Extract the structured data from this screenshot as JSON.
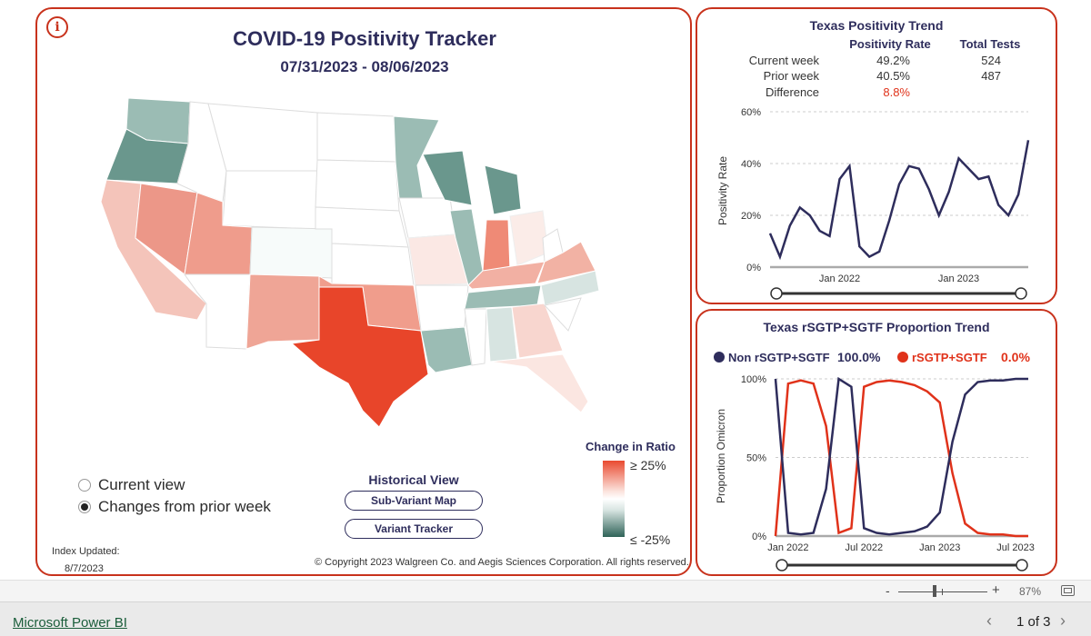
{
  "main": {
    "title": "COVID-19 Positivity Tracker",
    "date_range": "07/31/2023 - 08/06/2023",
    "info_icon": "info-icon",
    "legend": {
      "title": "Change in Ratio",
      "high": "≥ 25%",
      "low": "≤ -25%"
    },
    "view_options": [
      {
        "label": "Current view",
        "selected": false
      },
      {
        "label": "Changes from prior week",
        "selected": true
      }
    ],
    "historical": {
      "title": "Historical View",
      "buttons": [
        "Sub-Variant Map",
        "Variant Tracker"
      ]
    },
    "index_label": "Index Updated:",
    "index_date": "8/7/2023",
    "copyright": "© Copyright 2023 Walgreen Co. and Aegis Sciences Corporation. All rights reserved.",
    "colors": {
      "accent": "#c8321c",
      "title": "#2e2d5c",
      "texas": "#e8452a",
      "increase": "#f0a898",
      "decrease": "#9bbcb4"
    }
  },
  "trend": {
    "title": "Texas Positivity Trend",
    "col_headers": [
      "Positivity Rate",
      "Total Tests"
    ],
    "rows": [
      {
        "label": "Current week",
        "rate": "49.2%",
        "tests": "524"
      },
      {
        "label": "Prior week",
        "rate": "40.5%",
        "tests": "487"
      },
      {
        "label": "Difference",
        "rate": "8.8%",
        "tests": ""
      }
    ]
  },
  "sgtf": {
    "title": "Texas rSGTP+SGTF Proportion Trend",
    "legend": [
      {
        "name": "Non rSGTP+SGTF",
        "value": "100.0%",
        "color": "#2e2d5c"
      },
      {
        "name": "rSGTP+SGTF",
        "value": "0.0%",
        "color": "#e0321a"
      }
    ]
  },
  "chart_data": [
    {
      "type": "line",
      "title": "Texas Positivity Trend",
      "ylabel": "Positivity Rate",
      "yticks": [
        "0%",
        "20%",
        "40%",
        "60%"
      ],
      "xticks": [
        "Jan 2022",
        "Jan 2023"
      ],
      "ylim": [
        0,
        60
      ],
      "grid": true,
      "series": [
        {
          "color": "#2e2d5c",
          "x": [
            "2021-06",
            "2021-07",
            "2021-08",
            "2021-09",
            "2021-10",
            "2021-11",
            "2021-12",
            "2022-01",
            "2022-02",
            "2022-03",
            "2022-04",
            "2022-05",
            "2022-06",
            "2022-07",
            "2022-08",
            "2022-09",
            "2022-10",
            "2022-11",
            "2022-12",
            "2023-01",
            "2023-02",
            "2023-03",
            "2023-04",
            "2023-05",
            "2023-06",
            "2023-07",
            "2023-08"
          ],
          "y": [
            13,
            4,
            16,
            23,
            20,
            14,
            12,
            34,
            39,
            8,
            4,
            6,
            18,
            32,
            39,
            38,
            30,
            20,
            29,
            42,
            38,
            34,
            35,
            24,
            20,
            28,
            49
          ]
        }
      ]
    },
    {
      "type": "line",
      "title": "Texas rSGTP+SGTF Proportion Trend",
      "ylabel": "Proportion Omicron",
      "yticks": [
        "0%",
        "50%",
        "100%"
      ],
      "xticks": [
        "Jan 2022",
        "Jul 2022",
        "Jan 2023",
        "Jul 2023"
      ],
      "ylim": [
        0,
        100
      ],
      "grid": true,
      "series": [
        {
          "name": "Non rSGTP+SGTF",
          "color": "#2e2d5c",
          "x": [
            "2021-12",
            "2022-01",
            "2022-02",
            "2022-03",
            "2022-04",
            "2022-05",
            "2022-06",
            "2022-07",
            "2022-08",
            "2022-09",
            "2022-10",
            "2022-11",
            "2022-12",
            "2023-01",
            "2023-02",
            "2023-03",
            "2023-04",
            "2023-05",
            "2023-06",
            "2023-07",
            "2023-08"
          ],
          "y": [
            100,
            2,
            1,
            2,
            30,
            100,
            95,
            5,
            2,
            1,
            2,
            3,
            6,
            15,
            60,
            90,
            98,
            99,
            99,
            100,
            100
          ]
        },
        {
          "name": "rSGTP+SGTF",
          "color": "#e0321a",
          "x": [
            "2021-12",
            "2022-01",
            "2022-02",
            "2022-03",
            "2022-04",
            "2022-05",
            "2022-06",
            "2022-07",
            "2022-08",
            "2022-09",
            "2022-10",
            "2022-11",
            "2022-12",
            "2023-01",
            "2023-02",
            "2023-03",
            "2023-04",
            "2023-05",
            "2023-06",
            "2023-07",
            "2023-08"
          ],
          "y": [
            0,
            97,
            99,
            97,
            70,
            2,
            5,
            95,
            98,
            99,
            98,
            96,
            92,
            85,
            40,
            8,
            2,
            1,
            1,
            0,
            0
          ]
        }
      ]
    }
  ],
  "footer": {
    "brand": "Microsoft Power BI",
    "page": "1 of 3",
    "zoom": "87%",
    "zoom_minus": "-",
    "zoom_plus": "+",
    "prev_icon": "‹",
    "next_icon": "›"
  }
}
